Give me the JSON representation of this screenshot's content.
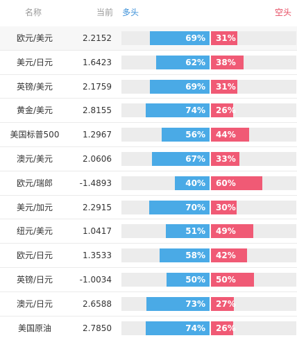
{
  "header": {
    "name": "名称",
    "current": "当前",
    "long": "多头",
    "short": "空头"
  },
  "colors": {
    "long": "#4aaae6",
    "short": "#f05a75",
    "long_header": "#3a8fd8",
    "short_header": "#e64a5f"
  },
  "rows": [
    {
      "name": "欧元/美元",
      "value": "2.2152",
      "long_pct": 69,
      "short_pct": 31,
      "long": "69%",
      "short": "31%"
    },
    {
      "name": "美元/日元",
      "value": "1.6423",
      "long_pct": 62,
      "short_pct": 38,
      "long": "62%",
      "short": "38%"
    },
    {
      "name": "英镑/美元",
      "value": "2.1759",
      "long_pct": 69,
      "short_pct": 31,
      "long": "69%",
      "short": "31%"
    },
    {
      "name": "黄金/美元",
      "value": "2.8155",
      "long_pct": 74,
      "short_pct": 26,
      "long": "74%",
      "short": "26%"
    },
    {
      "name": "美国标普500",
      "value": "1.2967",
      "long_pct": 56,
      "short_pct": 44,
      "long": "56%",
      "short": "44%"
    },
    {
      "name": "澳元/美元",
      "value": "2.0606",
      "long_pct": 67,
      "short_pct": 33,
      "long": "67%",
      "short": "33%"
    },
    {
      "name": "欧元/瑞郎",
      "value": "-1.4893",
      "long_pct": 40,
      "short_pct": 60,
      "long": "40%",
      "short": "60%"
    },
    {
      "name": "美元/加元",
      "value": "2.2915",
      "long_pct": 70,
      "short_pct": 30,
      "long": "70%",
      "short": "30%"
    },
    {
      "name": "纽元/美元",
      "value": "1.0417",
      "long_pct": 51,
      "short_pct": 49,
      "long": "51%",
      "short": "49%"
    },
    {
      "name": "欧元/日元",
      "value": "1.3533",
      "long_pct": 58,
      "short_pct": 42,
      "long": "58%",
      "short": "42%"
    },
    {
      "name": "英镑/日元",
      "value": "-1.0034",
      "long_pct": 50,
      "short_pct": 50,
      "long": "50%",
      "short": "50%"
    },
    {
      "name": "澳元/日元",
      "value": "2.6588",
      "long_pct": 73,
      "short_pct": 27,
      "long": "73%",
      "short": "27%"
    },
    {
      "name": "美国原油",
      "value": "2.7850",
      "long_pct": 74,
      "short_pct": 26,
      "long": "74%",
      "short": "26%"
    }
  ]
}
